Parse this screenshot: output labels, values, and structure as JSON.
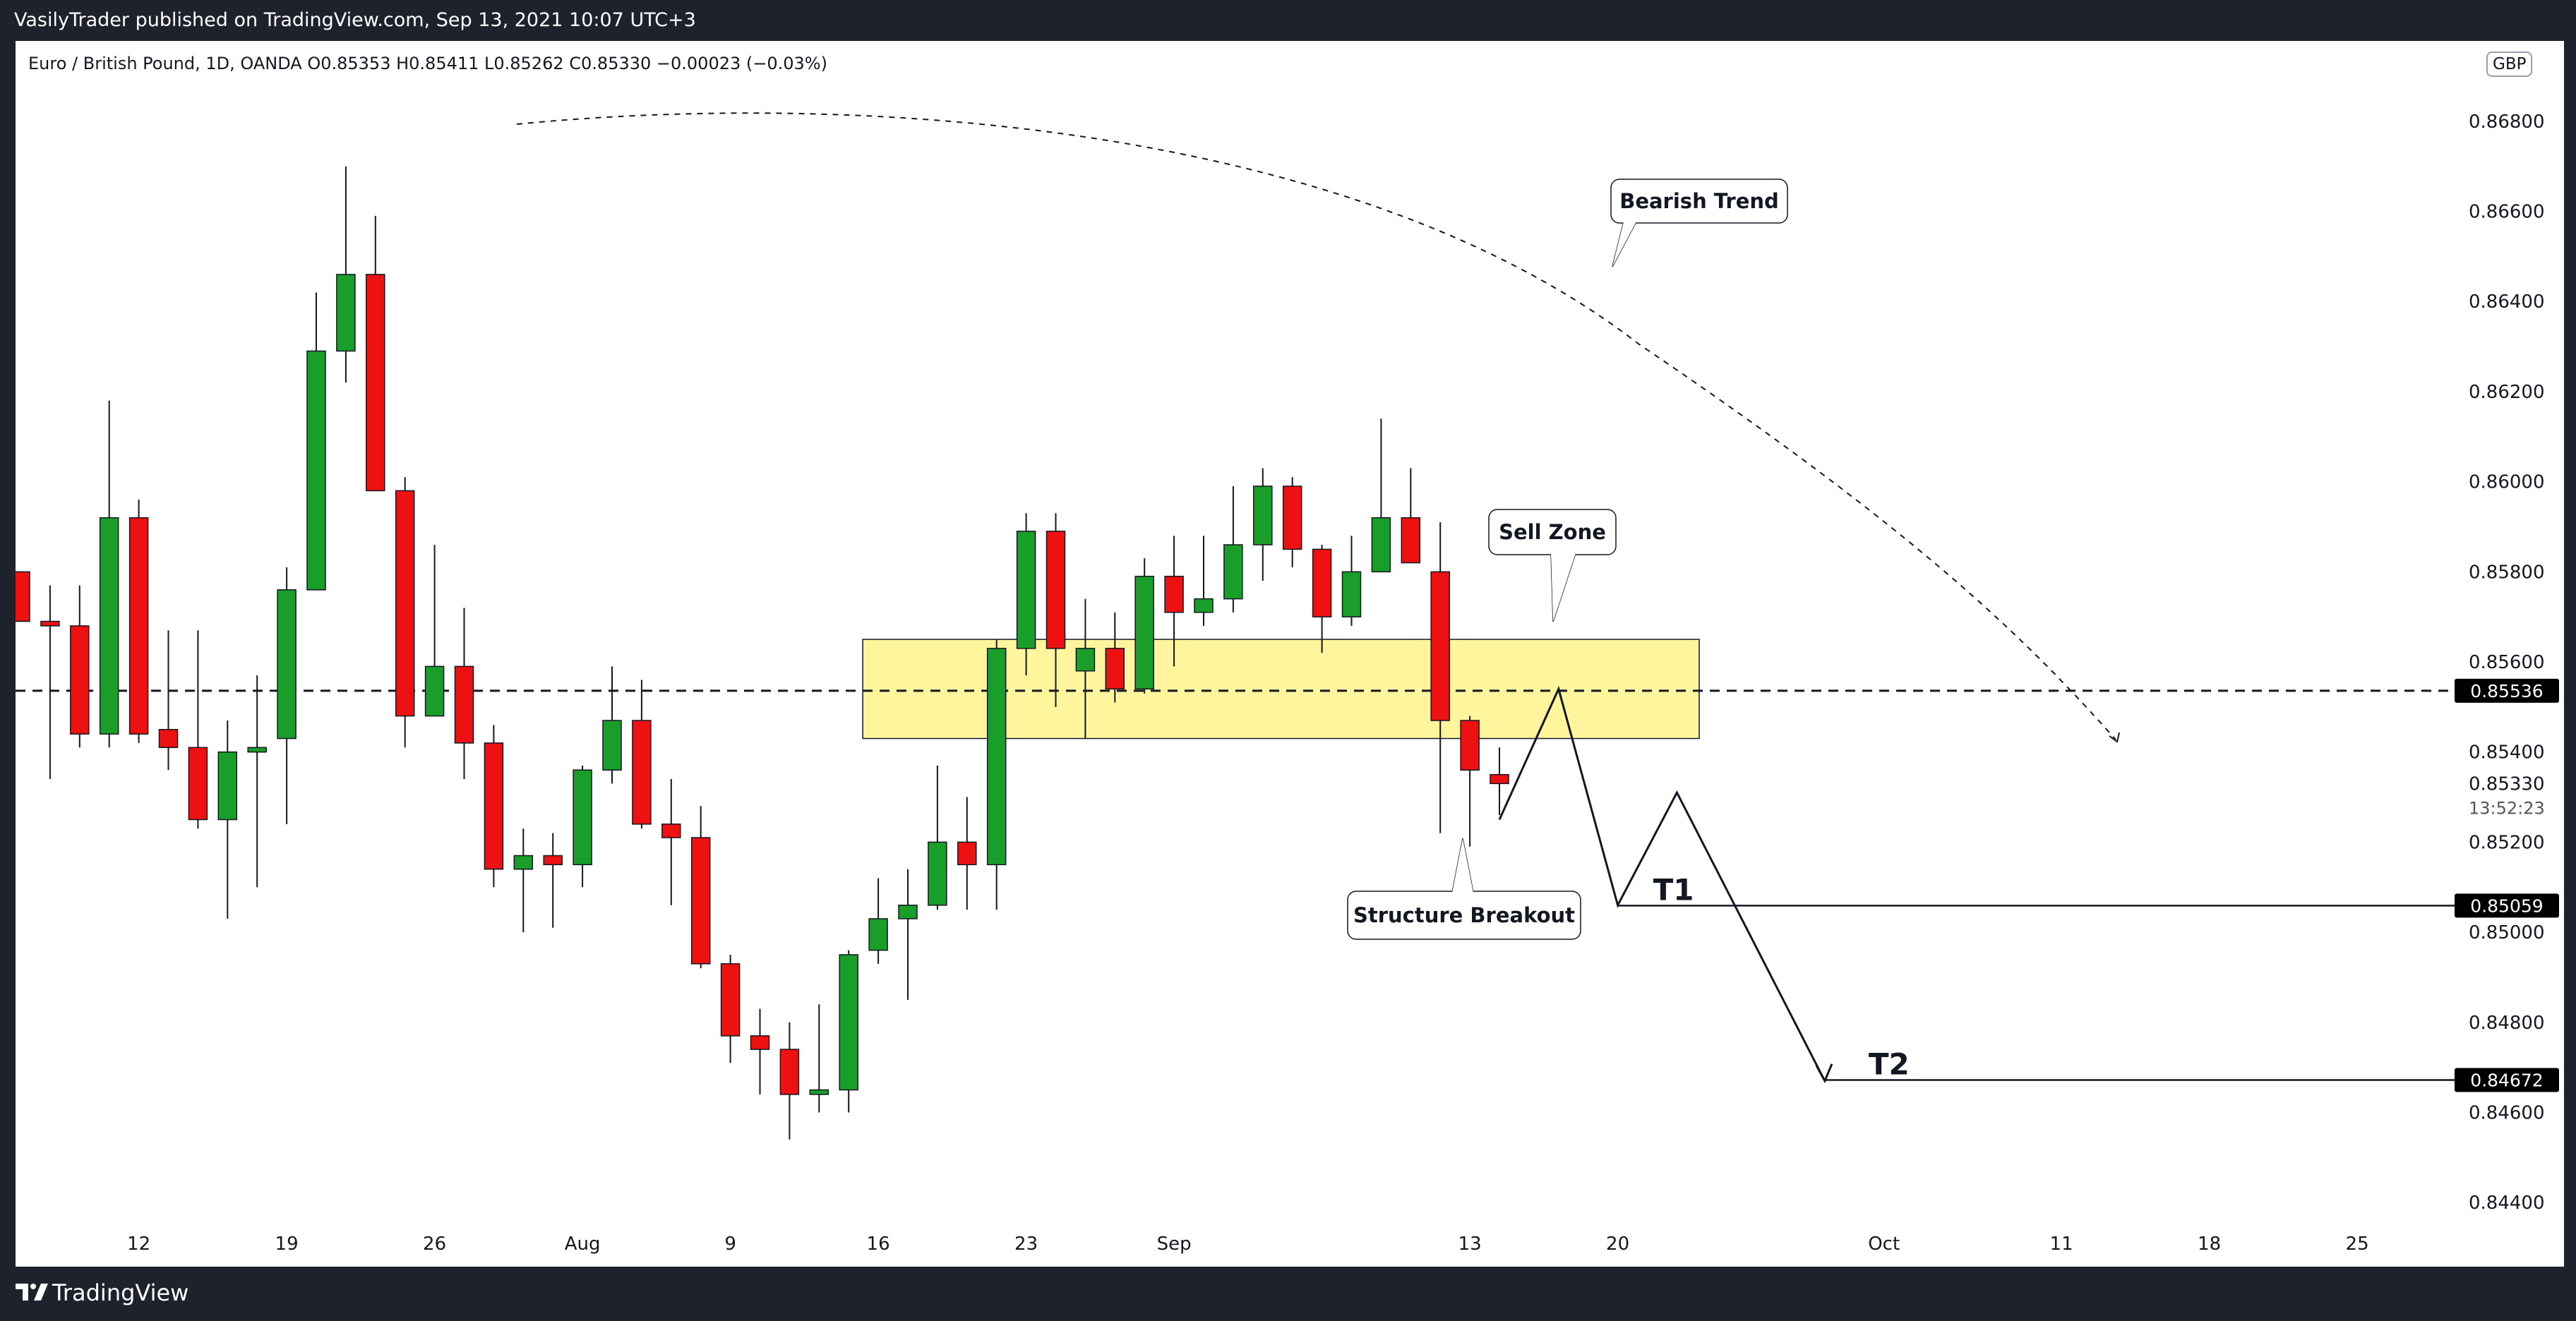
{
  "header": {
    "publisher": "VasilyTrader published on TradingView.com, Sep 13, 2021 10:07 UTC+3"
  },
  "legend": {
    "symbol_info": "Euro / British Pound, 1D, OANDA  O0.85353  H0.85411  L0.85262  C0.85330  −0.00023 (−0.03%)",
    "currency": "GBP"
  },
  "footer": {
    "brand": "TradingView"
  },
  "colors": {
    "up": "#1a9e2a",
    "down": "#ee1111",
    "zone_fill": "#fff59d",
    "axis_text": "#131722",
    "frame": "#1e222d"
  },
  "annotations": {
    "bearish_trend": "Bearish Trend",
    "sell_zone": "Sell Zone",
    "structure_breakout": "Structure Breakout",
    "t1": "T1",
    "t2": "T2",
    "countdown": "13:52:23"
  },
  "price_labels": {
    "level": "0.85536",
    "current": "0.85330",
    "t1": "0.85059",
    "t2": "0.84672"
  },
  "chart_data": {
    "type": "candlestick",
    "symbol": "EURGBP",
    "timeframe": "1D",
    "ylim": [
      0.843,
      0.869
    ],
    "y_ticks": [
      "0.86800",
      "0.86600",
      "0.86400",
      "0.86200",
      "0.86000",
      "0.85800",
      "0.85600",
      "0.85400",
      "0.85200",
      "0.85000",
      "0.84800",
      "0.84600",
      "0.84400"
    ],
    "x_ticks": [
      {
        "label": "12",
        "date": "2021-07-12"
      },
      {
        "label": "19",
        "date": "2021-07-19"
      },
      {
        "label": "26",
        "date": "2021-07-26"
      },
      {
        "label": "Aug",
        "date": "2021-08-02"
      },
      {
        "label": "9",
        "date": "2021-08-09"
      },
      {
        "label": "16",
        "date": "2021-08-16"
      },
      {
        "label": "23",
        "date": "2021-08-23"
      },
      {
        "label": "Sep",
        "date": "2021-08-30"
      },
      {
        "label": "13",
        "date": "2021-09-13"
      },
      {
        "label": "20",
        "date": "2021-09-20"
      },
      {
        "label": "Oct",
        "date": "2021-10-01"
      },
      {
        "label": "11",
        "date": "2021-10-11"
      },
      {
        "label": "18",
        "date": "2021-10-18"
      },
      {
        "label": "25",
        "date": "2021-10-25"
      }
    ],
    "candles": [
      {
        "date": "2021-07-06",
        "o": 0.858,
        "h": 0.858,
        "l": 0.8569,
        "c": 0.8569
      },
      {
        "date": "2021-07-07",
        "o": 0.8569,
        "h": 0.8577,
        "l": 0.8534,
        "c": 0.8568
      },
      {
        "date": "2021-07-08",
        "o": 0.8568,
        "h": 0.8577,
        "l": 0.8541,
        "c": 0.8544
      },
      {
        "date": "2021-07-09",
        "o": 0.8544,
        "h": 0.8618,
        "l": 0.8541,
        "c": 0.8592
      },
      {
        "date": "2021-07-12",
        "o": 0.8592,
        "h": 0.8596,
        "l": 0.8542,
        "c": 0.8544
      },
      {
        "date": "2021-07-13",
        "o": 0.8545,
        "h": 0.8567,
        "l": 0.8536,
        "c": 0.8541
      },
      {
        "date": "2021-07-14",
        "o": 0.8541,
        "h": 0.8567,
        "l": 0.8523,
        "c": 0.8525
      },
      {
        "date": "2021-07-15",
        "o": 0.8525,
        "h": 0.8547,
        "l": 0.8503,
        "c": 0.854
      },
      {
        "date": "2021-07-16",
        "o": 0.854,
        "h": 0.8557,
        "l": 0.851,
        "c": 0.8541
      },
      {
        "date": "2021-07-19",
        "o": 0.8543,
        "h": 0.8581,
        "l": 0.8524,
        "c": 0.8576
      },
      {
        "date": "2021-07-20",
        "o": 0.8576,
        "h": 0.8642,
        "l": 0.8576,
        "c": 0.8629
      },
      {
        "date": "2021-07-21",
        "o": 0.8629,
        "h": 0.867,
        "l": 0.8622,
        "c": 0.8646
      },
      {
        "date": "2021-07-22",
        "o": 0.8646,
        "h": 0.8659,
        "l": 0.8598,
        "c": 0.8598
      },
      {
        "date": "2021-07-23",
        "o": 0.8598,
        "h": 0.8601,
        "l": 0.8541,
        "c": 0.8548
      },
      {
        "date": "2021-07-26",
        "o": 0.8548,
        "h": 0.8586,
        "l": 0.8548,
        "c": 0.8559
      },
      {
        "date": "2021-07-27",
        "o": 0.8559,
        "h": 0.8572,
        "l": 0.8534,
        "c": 0.8542
      },
      {
        "date": "2021-07-28",
        "o": 0.8542,
        "h": 0.8546,
        "l": 0.851,
        "c": 0.8514
      },
      {
        "date": "2021-07-29",
        "o": 0.8514,
        "h": 0.8523,
        "l": 0.85,
        "c": 0.8517
      },
      {
        "date": "2021-07-30",
        "o": 0.8517,
        "h": 0.8522,
        "l": 0.8501,
        "c": 0.8515
      },
      {
        "date": "2021-08-02",
        "o": 0.8515,
        "h": 0.8537,
        "l": 0.851,
        "c": 0.8536
      },
      {
        "date": "2021-08-03",
        "o": 0.8536,
        "h": 0.8559,
        "l": 0.8533,
        "c": 0.8547
      },
      {
        "date": "2021-08-04",
        "o": 0.8547,
        "h": 0.8556,
        "l": 0.8523,
        "c": 0.8524
      },
      {
        "date": "2021-08-05",
        "o": 0.8524,
        "h": 0.8534,
        "l": 0.8506,
        "c": 0.8521
      },
      {
        "date": "2021-08-06",
        "o": 0.8521,
        "h": 0.8528,
        "l": 0.8492,
        "c": 0.8493
      },
      {
        "date": "2021-08-09",
        "o": 0.8493,
        "h": 0.8495,
        "l": 0.8471,
        "c": 0.8477
      },
      {
        "date": "2021-08-10",
        "o": 0.8477,
        "h": 0.8483,
        "l": 0.8464,
        "c": 0.8474
      },
      {
        "date": "2021-08-11",
        "o": 0.8474,
        "h": 0.848,
        "l": 0.8454,
        "c": 0.8464
      },
      {
        "date": "2021-08-12",
        "o": 0.8464,
        "h": 0.8484,
        "l": 0.846,
        "c": 0.8465
      },
      {
        "date": "2021-08-13",
        "o": 0.8465,
        "h": 0.8496,
        "l": 0.846,
        "c": 0.8495
      },
      {
        "date": "2021-08-16",
        "o": 0.8496,
        "h": 0.8512,
        "l": 0.8493,
        "c": 0.8503
      },
      {
        "date": "2021-08-17",
        "o": 0.8503,
        "h": 0.8514,
        "l": 0.8485,
        "c": 0.8506
      },
      {
        "date": "2021-08-18",
        "o": 0.8506,
        "h": 0.8537,
        "l": 0.8505,
        "c": 0.852
      },
      {
        "date": "2021-08-19",
        "o": 0.852,
        "h": 0.853,
        "l": 0.8505,
        "c": 0.8515
      },
      {
        "date": "2021-08-20",
        "o": 0.8515,
        "h": 0.8565,
        "l": 0.8505,
        "c": 0.8563
      },
      {
        "date": "2021-08-23",
        "o": 0.8563,
        "h": 0.8593,
        "l": 0.8557,
        "c": 0.8589
      },
      {
        "date": "2021-08-24",
        "o": 0.8589,
        "h": 0.8593,
        "l": 0.855,
        "c": 0.8563
      },
      {
        "date": "2021-08-25",
        "o": 0.8558,
        "h": 0.8574,
        "l": 0.8543,
        "c": 0.8563
      },
      {
        "date": "2021-08-26",
        "o": 0.8563,
        "h": 0.8571,
        "l": 0.8551,
        "c": 0.8554
      },
      {
        "date": "2021-08-27",
        "o": 0.8554,
        "h": 0.8583,
        "l": 0.8553,
        "c": 0.8579
      },
      {
        "date": "2021-08-30",
        "o": 0.8579,
        "h": 0.8588,
        "l": 0.8559,
        "c": 0.8571
      },
      {
        "date": "2021-08-31",
        "o": 0.8571,
        "h": 0.8588,
        "l": 0.8568,
        "c": 0.8574
      },
      {
        "date": "2021-09-01",
        "o": 0.8574,
        "h": 0.8599,
        "l": 0.8571,
        "c": 0.8586
      },
      {
        "date": "2021-09-02",
        "o": 0.8586,
        "h": 0.8603,
        "l": 0.8578,
        "c": 0.8599
      },
      {
        "date": "2021-09-03",
        "o": 0.8599,
        "h": 0.8601,
        "l": 0.8581,
        "c": 0.8585
      },
      {
        "date": "2021-09-06",
        "o": 0.8585,
        "h": 0.8586,
        "l": 0.8562,
        "c": 0.857
      },
      {
        "date": "2021-09-07",
        "o": 0.857,
        "h": 0.8588,
        "l": 0.8568,
        "c": 0.858
      },
      {
        "date": "2021-09-08",
        "o": 0.858,
        "h": 0.8614,
        "l": 0.858,
        "c": 0.8592
      },
      {
        "date": "2021-09-09",
        "o": 0.8592,
        "h": 0.8603,
        "l": 0.8582,
        "c": 0.8582
      },
      {
        "date": "2021-09-10",
        "o": 0.858,
        "h": 0.8591,
        "l": 0.8522,
        "c": 0.8547
      },
      {
        "date": "2021-09-13",
        "o": 0.8547,
        "h": 0.8548,
        "l": 0.8519,
        "c": 0.8536
      },
      {
        "date": "2021-09-14",
        "o": 0.8535,
        "h": 0.8541,
        "l": 0.8526,
        "c": 0.8533
      }
    ],
    "sell_zone": {
      "label": "Sell Zone",
      "top": 0.8565,
      "bottom": 0.8543,
      "from": "2021-08-16",
      "to": "2021-09-22"
    },
    "key_level": {
      "price": 0.85536,
      "style": "dashed"
    },
    "targets": [
      {
        "label": "T1",
        "price": 0.85059
      },
      {
        "label": "T2",
        "price": 0.84672
      }
    ],
    "projected_path": [
      {
        "date": "2021-09-14",
        "price": 0.8525
      },
      {
        "date": "2021-09-16",
        "price": 0.8554
      },
      {
        "date": "2021-09-20",
        "price": 0.8506
      },
      {
        "date": "2021-09-22",
        "price": 0.8531
      },
      {
        "date": "2021-09-29",
        "price": 0.8467
      }
    ],
    "trend_label": "Bearish Trend"
  }
}
